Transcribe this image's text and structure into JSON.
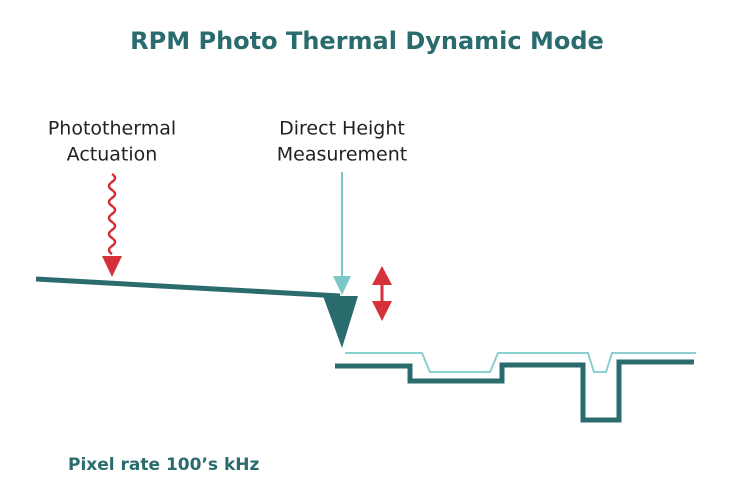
{
  "title": "RPM Photo Thermal Dynamic Mode",
  "labels": {
    "actuation": [
      "Photothermal",
      "Actuation"
    ],
    "measurement": [
      "Direct Height",
      "Measurement"
    ]
  },
  "footer": "Pixel rate 100’s kHz"
}
